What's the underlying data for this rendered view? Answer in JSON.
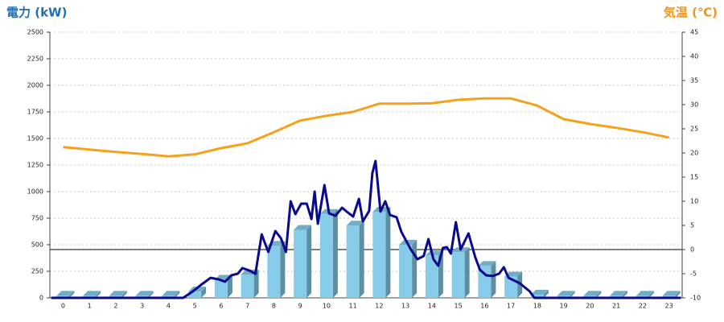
{
  "chart_data": {
    "type": "bar",
    "ylabel": "電力 (kW)",
    "y2label": "気温 (℃)",
    "ylabel_color": "#1f6fb8",
    "y2label_color": "#f29419",
    "categories": [
      "0",
      "1",
      "2",
      "3",
      "4",
      "5",
      "6",
      "7",
      "8",
      "9",
      "10",
      "11",
      "12",
      "13",
      "14",
      "15",
      "16",
      "17",
      "18",
      "19",
      "20",
      "21",
      "22",
      "23"
    ],
    "xlim": [
      -0.5,
      23.5
    ],
    "ylim": [
      0,
      2500
    ],
    "yticks": [
      0,
      250,
      500,
      750,
      1000,
      1250,
      1500,
      1750,
      2000,
      2250,
      2500
    ],
    "y2lim": [
      -10,
      45
    ],
    "y2ticks": [
      -10,
      -5,
      0,
      5,
      10,
      15,
      20,
      25,
      30,
      35,
      40,
      45
    ],
    "grid": true,
    "y2_zero_line": true,
    "series": [
      {
        "type": "bar",
        "color": "#86cbe8",
        "values": [
          20,
          20,
          20,
          20,
          20,
          60,
          170,
          220,
          490,
          640,
          790,
          680,
          810,
          500,
          400,
          430,
          300,
          200,
          30,
          20,
          20,
          20,
          20,
          20
        ]
      },
      {
        "type": "line",
        "axis": "y2",
        "color": "#f5a11c",
        "values": [
          21.2,
          20.7,
          20.2,
          19.8,
          19.3,
          19.7,
          21,
          22,
          24.3,
          26.7,
          27.7,
          28.5,
          30.2,
          30.2,
          30.3,
          31,
          31.3,
          31.3,
          29.8,
          27,
          26,
          25.2,
          24.3,
          23.2
        ]
      },
      {
        "type": "line",
        "color": "#0a0a8c",
        "x": [
          -0.45,
          4.56,
          4.93,
          5.23,
          5.6,
          5.9,
          6.15,
          6.39,
          6.63,
          6.81,
          7.06,
          7.3,
          7.54,
          7.79,
          8.06,
          8.27,
          8.46,
          8.64,
          8.82,
          9.04,
          9.25,
          9.43,
          9.55,
          9.67,
          9.92,
          10.1,
          10.34,
          10.59,
          10.77,
          11.01,
          11.23,
          11.38,
          11.62,
          11.74,
          11.86,
          12.05,
          12.23,
          12.41,
          12.66,
          12.84,
          13.2,
          13.45,
          13.69,
          13.87,
          14.06,
          14.24,
          14.42,
          14.57,
          14.72,
          14.91,
          15.09,
          15.39,
          15.64,
          15.82,
          16.06,
          16.31,
          16.55,
          16.73,
          16.91,
          17.34,
          17.71,
          17.89,
          23.45
        ],
        "values": [
          0,
          0,
          61,
          121,
          189,
          174,
          152,
          212,
          227,
          280,
          258,
          227,
          598,
          432,
          629,
          561,
          432,
          909,
          788,
          886,
          886,
          742,
          1000,
          697,
          1061,
          795,
          773,
          848,
          811,
          765,
          932,
          720,
          818,
          1174,
          1288,
          811,
          909,
          780,
          758,
          621,
          455,
          364,
          394,
          553,
          364,
          303,
          470,
          477,
          417,
          712,
          455,
          606,
          386,
          265,
          212,
          205,
          227,
          288,
          189,
          136,
          61,
          0,
          0
        ]
      }
    ]
  }
}
